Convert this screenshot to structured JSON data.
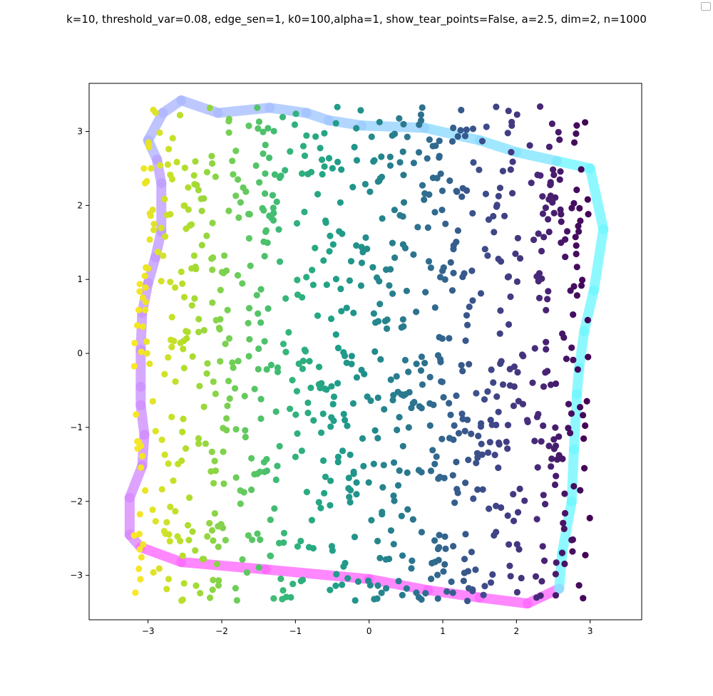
{
  "chart_data": {
    "type": "scatter",
    "title": "k=10, threshold_var=0.08, edge_sen=1, k0=100,alpha=1, show_tear_points=False, a=2.5, dim=2, n=1000",
    "xlabel": "",
    "ylabel": "",
    "xlim": [
      -3.8,
      3.7
    ],
    "ylim": [
      -3.6,
      3.65
    ],
    "xticks": [
      -3,
      -2,
      -1,
      0,
      1,
      2,
      3
    ],
    "yticks": [
      -3,
      -2,
      -1,
      0,
      1,
      2,
      3
    ],
    "xtick_labels": [
      "−3",
      "−2",
      "−1",
      "0",
      "1",
      "2",
      "3"
    ],
    "ytick_labels": [
      "−3",
      "−2",
      "−1",
      "0",
      "1",
      "2",
      "3"
    ],
    "grid": false,
    "legend": "top-right (empty)",
    "point_count": 1000,
    "point_domain": {
      "x": [
        -3.2,
        3.0
      ],
      "y": [
        -3.35,
        3.35
      ]
    },
    "colormap": "viridis (reversed: yellow at left, purple at right)",
    "colormap_stops": [
      "#fde725",
      "#b5de2b",
      "#6ece58",
      "#35b779",
      "#1f9e89",
      "#26828e",
      "#31688e",
      "#3e4989",
      "#482878",
      "#440154"
    ],
    "boundary": {
      "colormap": "cool",
      "vertices": [
        [
          -2.55,
          3.42
        ],
        [
          -2.8,
          3.25
        ],
        [
          -3.0,
          2.88
        ],
        [
          -2.88,
          2.62
        ],
        [
          -2.82,
          2.3
        ],
        [
          -2.82,
          1.65
        ],
        [
          -2.9,
          1.3
        ],
        [
          -3.0,
          0.95
        ],
        [
          -3.08,
          0.55
        ],
        [
          -3.1,
          0.05
        ],
        [
          -3.1,
          -0.45
        ],
        [
          -3.1,
          -0.7
        ],
        [
          -3.05,
          -1.1
        ],
        [
          -3.08,
          -1.52
        ],
        [
          -3.25,
          -1.95
        ],
        [
          -3.25,
          -2.45
        ],
        [
          -3.1,
          -2.62
        ],
        [
          -2.55,
          -2.82
        ],
        [
          -1.4,
          -2.92
        ],
        [
          0.0,
          -3.05
        ],
        [
          0.8,
          -3.2
        ],
        [
          1.5,
          -3.3
        ],
        [
          2.15,
          -3.38
        ],
        [
          2.58,
          -3.18
        ],
        [
          2.62,
          -2.7
        ],
        [
          2.75,
          -2.0
        ],
        [
          2.78,
          -1.3
        ],
        [
          2.82,
          -0.55
        ],
        [
          2.85,
          -0.2
        ],
        [
          2.92,
          0.3
        ],
        [
          3.05,
          0.85
        ],
        [
          3.18,
          1.68
        ],
        [
          3.0,
          2.5
        ],
        [
          2.55,
          2.6
        ],
        [
          2.0,
          2.72
        ],
        [
          1.5,
          2.88
        ],
        [
          0.75,
          3.05
        ],
        [
          -0.1,
          3.08
        ],
        [
          -0.55,
          3.15
        ],
        [
          -0.85,
          3.25
        ],
        [
          -1.35,
          3.32
        ],
        [
          -2.05,
          3.25
        ],
        [
          -2.55,
          3.42
        ]
      ]
    }
  }
}
